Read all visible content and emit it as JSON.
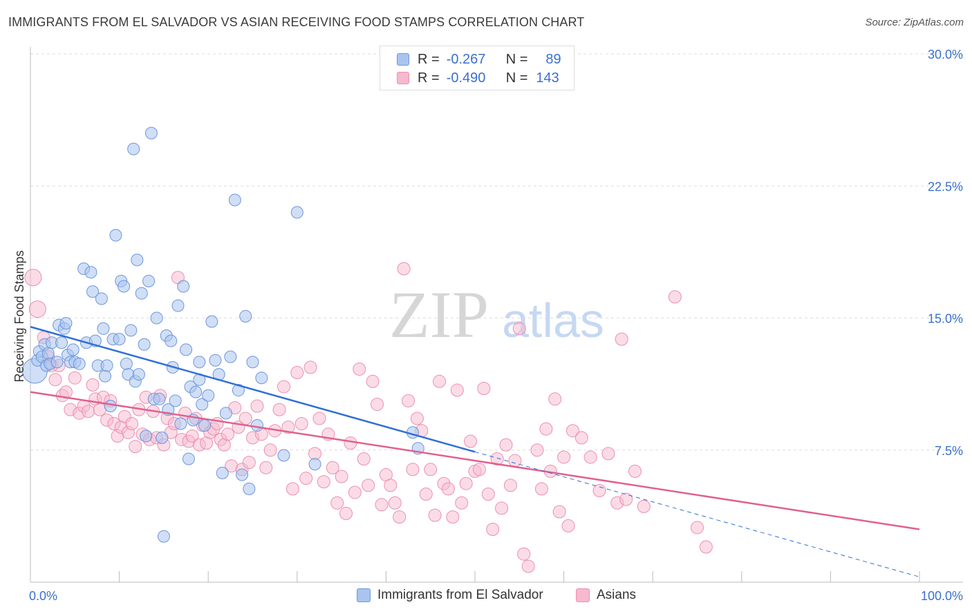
{
  "title": "IMMIGRANTS FROM EL SALVADOR VS ASIAN RECEIVING FOOD STAMPS CORRELATION CHART",
  "source": "Source: ZipAtlas.com",
  "watermark": {
    "zip": "ZIP",
    "atlas": "atlas"
  },
  "legend_top": [
    {
      "r_label": "R =",
      "r_value": "-0.267",
      "n_label": "N =",
      "n_value": "89"
    },
    {
      "r_label": "R =",
      "r_value": "-0.490",
      "n_label": "N =",
      "n_value": "143"
    }
  ],
  "legend_bottom": [
    "Immigrants from El Salvador",
    "Asians"
  ],
  "colors": {
    "blue_fill": "#a9c4ee",
    "blue_stroke": "#6d96dc",
    "blue_line": "#2f6fd6",
    "pink_fill": "#f7b9cd",
    "pink_stroke": "#ec8fae",
    "pink_line": "#e0608f",
    "tick_label": "#3a6fd0",
    "grid": "#dddddd"
  },
  "chart_data": {
    "type": "scatter",
    "title": "IMMIGRANTS FROM EL SALVADOR VS ASIAN RECEIVING FOOD STAMPS CORRELATION CHART",
    "xlabel": "",
    "ylabel": "Receiving Food Stamps",
    "xlim": [
      0,
      100
    ],
    "ylim": [
      0,
      30
    ],
    "y_ticks": [
      7.5,
      15.0,
      22.5,
      30.0
    ],
    "y_tick_labels": [
      "7.5%",
      "15.0%",
      "22.5%",
      "30.0%"
    ],
    "x_tick_labels": [
      "0.0%",
      "100.0%"
    ],
    "grid": "horizontal dashed",
    "legend_placement": "top-center",
    "series": [
      {
        "name": "Immigrants from El Salvador",
        "r": -0.267,
        "n": 89,
        "trend": {
          "x": [
            0,
            50
          ],
          "y": [
            14.5,
            7.4
          ]
        },
        "trend_dashed": {
          "x": [
            50,
            100
          ],
          "y": [
            7.4,
            0.3
          ]
        },
        "points": [
          [
            0.5,
            12.0
          ],
          [
            0.8,
            12.6
          ],
          [
            1.0,
            13.1
          ],
          [
            1.3,
            12.8
          ],
          [
            1.6,
            13.5
          ],
          [
            1.8,
            12.3
          ],
          [
            2.0,
            13.0
          ],
          [
            2.2,
            12.4
          ],
          [
            2.4,
            13.6
          ],
          [
            3.0,
            12.5
          ],
          [
            3.2,
            14.6
          ],
          [
            3.5,
            13.6
          ],
          [
            3.8,
            14.4
          ],
          [
            4.0,
            14.7
          ],
          [
            4.2,
            12.9
          ],
          [
            4.5,
            12.5
          ],
          [
            4.8,
            13.2
          ],
          [
            5.0,
            12.5
          ],
          [
            5.5,
            12.4
          ],
          [
            6.0,
            17.8
          ],
          [
            6.3,
            13.6
          ],
          [
            6.8,
            17.6
          ],
          [
            7.0,
            16.5
          ],
          [
            7.3,
            13.7
          ],
          [
            7.6,
            12.3
          ],
          [
            8.0,
            16.1
          ],
          [
            8.2,
            14.4
          ],
          [
            8.4,
            11.7
          ],
          [
            8.6,
            12.3
          ],
          [
            9.0,
            10.0
          ],
          [
            9.3,
            13.8
          ],
          [
            9.6,
            19.7
          ],
          [
            10.0,
            13.8
          ],
          [
            10.2,
            17.1
          ],
          [
            10.5,
            16.8
          ],
          [
            10.8,
            12.4
          ],
          [
            11.0,
            11.8
          ],
          [
            11.3,
            14.3
          ],
          [
            11.6,
            24.6
          ],
          [
            11.8,
            11.4
          ],
          [
            12.0,
            18.3
          ],
          [
            12.2,
            11.8
          ],
          [
            12.5,
            16.4
          ],
          [
            12.8,
            13.5
          ],
          [
            13.0,
            8.3
          ],
          [
            13.3,
            17.1
          ],
          [
            13.6,
            25.5
          ],
          [
            13.9,
            10.4
          ],
          [
            14.2,
            15.0
          ],
          [
            14.5,
            10.4
          ],
          [
            14.8,
            8.2
          ],
          [
            15.0,
            2.6
          ],
          [
            15.3,
            14.0
          ],
          [
            15.5,
            9.8
          ],
          [
            15.8,
            13.7
          ],
          [
            16.0,
            12.2
          ],
          [
            16.3,
            10.3
          ],
          [
            16.6,
            15.7
          ],
          [
            16.9,
            9.0
          ],
          [
            17.2,
            16.8
          ],
          [
            17.5,
            13.2
          ],
          [
            17.8,
            7.0
          ],
          [
            18.0,
            11.1
          ],
          [
            18.3,
            9.2
          ],
          [
            18.6,
            10.8
          ],
          [
            19.0,
            12.5
          ],
          [
            19.3,
            10.1
          ],
          [
            19.6,
            8.9
          ],
          [
            20.0,
            10.6
          ],
          [
            20.4,
            14.8
          ],
          [
            20.8,
            12.6
          ],
          [
            21.2,
            11.8
          ],
          [
            21.6,
            6.2
          ],
          [
            22.0,
            9.6
          ],
          [
            22.5,
            12.8
          ],
          [
            23.0,
            21.7
          ],
          [
            23.4,
            10.9
          ],
          [
            23.8,
            6.1
          ],
          [
            24.2,
            15.1
          ],
          [
            24.6,
            5.3
          ],
          [
            25.0,
            12.5
          ],
          [
            25.5,
            8.9
          ],
          [
            26.0,
            11.6
          ],
          [
            28.5,
            7.2
          ],
          [
            30.0,
            21.0
          ],
          [
            32.0,
            6.7
          ],
          [
            43.0,
            8.5
          ],
          [
            43.6,
            7.6
          ],
          [
            19.0,
            11.5
          ]
        ]
      },
      {
        "name": "Asians",
        "r": -0.49,
        "n": 143,
        "trend": {
          "x": [
            0,
            100
          ],
          "y": [
            10.8,
            3.0
          ]
        },
        "points": [
          [
            0.3,
            17.3
          ],
          [
            0.8,
            15.5
          ],
          [
            1.5,
            13.9
          ],
          [
            2.0,
            12.8
          ],
          [
            2.4,
            12.3
          ],
          [
            2.8,
            11.5
          ],
          [
            3.2,
            12.3
          ],
          [
            3.6,
            10.6
          ],
          [
            4.0,
            10.8
          ],
          [
            4.5,
            9.8
          ],
          [
            5.0,
            11.6
          ],
          [
            5.5,
            9.6
          ],
          [
            6.0,
            10.0
          ],
          [
            6.5,
            9.7
          ],
          [
            7.0,
            11.2
          ],
          [
            7.3,
            10.4
          ],
          [
            7.8,
            9.8
          ],
          [
            8.2,
            10.5
          ],
          [
            8.6,
            9.2
          ],
          [
            9.0,
            10.3
          ],
          [
            9.4,
            9.0
          ],
          [
            9.8,
            8.3
          ],
          [
            10.2,
            8.8
          ],
          [
            10.6,
            9.4
          ],
          [
            11.0,
            8.5
          ],
          [
            11.4,
            9.0
          ],
          [
            11.8,
            7.7
          ],
          [
            12.2,
            9.8
          ],
          [
            12.6,
            8.4
          ],
          [
            13.0,
            10.5
          ],
          [
            13.4,
            8.1
          ],
          [
            13.8,
            9.7
          ],
          [
            14.2,
            8.2
          ],
          [
            14.6,
            10.6
          ],
          [
            15.0,
            7.8
          ],
          [
            15.4,
            9.3
          ],
          [
            15.8,
            8.5
          ],
          [
            16.2,
            9.0
          ],
          [
            16.6,
            17.3
          ],
          [
            17.0,
            8.1
          ],
          [
            17.4,
            9.6
          ],
          [
            17.8,
            8.0
          ],
          [
            18.2,
            8.3
          ],
          [
            18.6,
            9.3
          ],
          [
            19.0,
            7.8
          ],
          [
            19.4,
            8.9
          ],
          [
            19.8,
            7.9
          ],
          [
            20.2,
            8.5
          ],
          [
            20.6,
            8.7
          ],
          [
            21.0,
            9.0
          ],
          [
            21.4,
            8.1
          ],
          [
            21.8,
            7.8
          ],
          [
            22.2,
            8.4
          ],
          [
            22.6,
            6.6
          ],
          [
            23.0,
            9.9
          ],
          [
            23.4,
            8.8
          ],
          [
            23.8,
            6.4
          ],
          [
            24.2,
            9.3
          ],
          [
            24.6,
            6.8
          ],
          [
            25.0,
            8.2
          ],
          [
            25.5,
            10.0
          ],
          [
            26.0,
            8.4
          ],
          [
            26.5,
            6.5
          ],
          [
            27.0,
            7.5
          ],
          [
            27.5,
            8.6
          ],
          [
            28.0,
            9.8
          ],
          [
            28.5,
            11.1
          ],
          [
            29.0,
            8.8
          ],
          [
            29.5,
            5.3
          ],
          [
            30.0,
            11.9
          ],
          [
            30.5,
            9.0
          ],
          [
            31.0,
            5.9
          ],
          [
            31.5,
            12.2
          ],
          [
            32.0,
            7.3
          ],
          [
            32.5,
            9.3
          ],
          [
            33.0,
            5.7
          ],
          [
            33.5,
            8.4
          ],
          [
            34.0,
            6.5
          ],
          [
            34.5,
            4.5
          ],
          [
            35.0,
            6.0
          ],
          [
            35.5,
            3.9
          ],
          [
            36.0,
            7.9
          ],
          [
            36.5,
            5.1
          ],
          [
            37.0,
            12.1
          ],
          [
            37.5,
            7.0
          ],
          [
            38.0,
            5.5
          ],
          [
            38.5,
            11.4
          ],
          [
            39.0,
            10.1
          ],
          [
            39.5,
            4.4
          ],
          [
            40.0,
            6.1
          ],
          [
            40.5,
            5.5
          ],
          [
            41.0,
            4.5
          ],
          [
            41.5,
            3.7
          ],
          [
            42.0,
            17.8
          ],
          [
            42.5,
            10.3
          ],
          [
            43.0,
            6.4
          ],
          [
            43.5,
            9.3
          ],
          [
            44.0,
            8.6
          ],
          [
            44.5,
            5.0
          ],
          [
            45.0,
            6.4
          ],
          [
            45.5,
            3.8
          ],
          [
            46.0,
            11.4
          ],
          [
            46.5,
            5.6
          ],
          [
            47.0,
            5.3
          ],
          [
            47.5,
            3.7
          ],
          [
            48.0,
            10.9
          ],
          [
            48.5,
            4.5
          ],
          [
            49.0,
            5.6
          ],
          [
            49.5,
            8.0
          ],
          [
            50.0,
            6.3
          ],
          [
            50.5,
            6.4
          ],
          [
            51.0,
            11.0
          ],
          [
            51.5,
            5.0
          ],
          [
            52.0,
            3.0
          ],
          [
            52.5,
            7.0
          ],
          [
            53.0,
            4.2
          ],
          [
            53.5,
            7.8
          ],
          [
            54.0,
            5.5
          ],
          [
            54.5,
            6.9
          ],
          [
            55.0,
            14.4
          ],
          [
            55.5,
            1.6
          ],
          [
            56.0,
            0.9
          ],
          [
            57.0,
            7.5
          ],
          [
            57.5,
            5.3
          ],
          [
            58.0,
            8.7
          ],
          [
            58.5,
            6.3
          ],
          [
            59.0,
            10.4
          ],
          [
            59.5,
            4.0
          ],
          [
            60.0,
            7.1
          ],
          [
            60.5,
            3.2
          ],
          [
            61.0,
            8.6
          ],
          [
            62.0,
            8.2
          ],
          [
            63.0,
            7.1
          ],
          [
            64.0,
            5.2
          ],
          [
            65.0,
            7.3
          ],
          [
            66.0,
            4.5
          ],
          [
            66.5,
            13.8
          ],
          [
            67.0,
            4.7
          ],
          [
            68.0,
            6.3
          ],
          [
            69.0,
            4.3
          ],
          [
            72.5,
            16.2
          ],
          [
            75.0,
            3.1
          ],
          [
            76.0,
            2.0
          ]
        ]
      }
    ]
  }
}
